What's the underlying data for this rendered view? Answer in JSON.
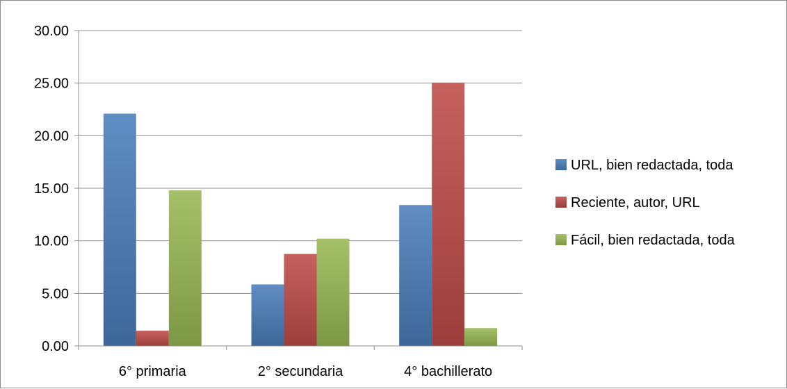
{
  "chart_data": {
    "type": "bar",
    "categories": [
      "6° primaria",
      "2° secundaria",
      "4° bachillerato"
    ],
    "series": [
      {
        "name": "URL, bien redactada, toda",
        "values": [
          22.1,
          5.85,
          13.4
        ],
        "color": "#4a7ebb"
      },
      {
        "name": "Reciente, autor, URL",
        "values": [
          1.45,
          8.75,
          25.05
        ],
        "color": "#be4b48"
      },
      {
        "name": "Fácil, bien redactada, toda",
        "values": [
          14.8,
          10.2,
          1.7
        ],
        "color": "#98b954"
      }
    ],
    "ylim": [
      0,
      30
    ],
    "yticks": [
      "0.00",
      "5.00",
      "10.00",
      "15.00",
      "20.00",
      "25.00",
      "30.00"
    ],
    "grid": true,
    "legend_position": "right"
  }
}
